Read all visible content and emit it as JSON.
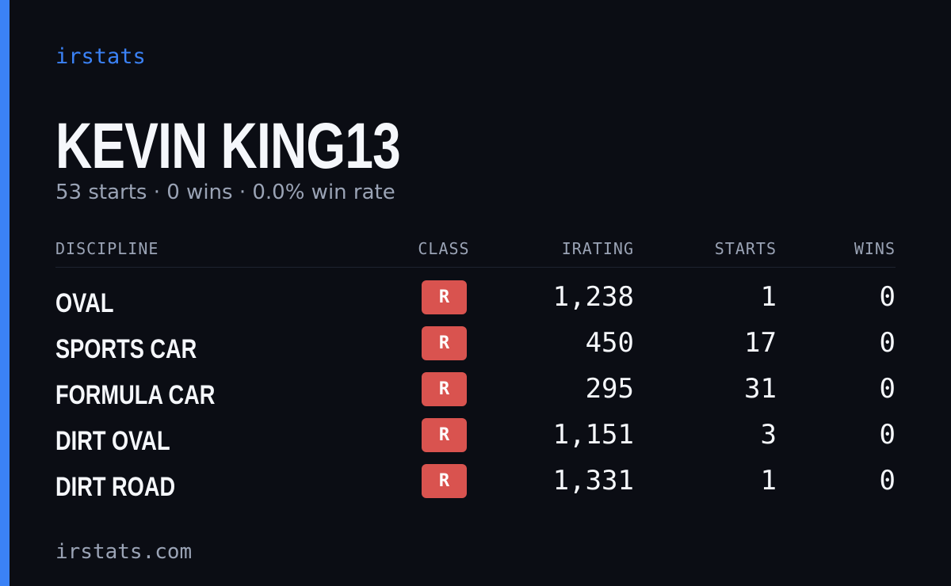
{
  "brand": "irstats",
  "profile": {
    "name": "KEVIN KING13",
    "summary": "53 starts · 0 wins · 0.0% win rate"
  },
  "table": {
    "headers": [
      "DISCIPLINE",
      "CLASS",
      "IRATING",
      "STARTS",
      "WINS"
    ],
    "rows": [
      [
        "OVAL",
        "R",
        "1,238",
        "1",
        "0"
      ],
      [
        "SPORTS CAR",
        "R",
        "450",
        "17",
        "0"
      ],
      [
        "FORMULA CAR",
        "R",
        "295",
        "31",
        "0"
      ],
      [
        "DIRT OVAL",
        "R",
        "1,151",
        "3",
        "0"
      ],
      [
        "DIRT ROAD",
        "R",
        "1,331",
        "1",
        "0"
      ]
    ]
  },
  "footer": "irstats.com"
}
